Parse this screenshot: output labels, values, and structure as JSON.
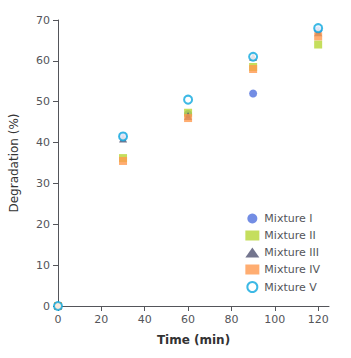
{
  "chart_data": {
    "type": "scatter",
    "xlabel": "Time (min)",
    "ylabel": "Degradation (%)",
    "xlim": [
      0,
      125
    ],
    "ylim": [
      0,
      70
    ],
    "xticks": [
      0,
      20,
      40,
      60,
      80,
      100,
      120
    ],
    "yticks": [
      0,
      10,
      20,
      30,
      40,
      50,
      60,
      70
    ],
    "x": [
      0,
      30,
      60,
      90,
      120
    ],
    "series": [
      {
        "name": "Mixture I",
        "marker": "circle",
        "values": [
          0,
          41.5,
          47.0,
          52.0,
          67.5
        ]
      },
      {
        "name": "Mixture II",
        "marker": "square",
        "values": [
          0,
          36.2,
          47.3,
          58.5,
          64.0
        ]
      },
      {
        "name": "Mixture III",
        "marker": "triangle",
        "values": [
          0,
          41.0,
          46.5,
          61.0,
          67.0
        ]
      },
      {
        "name": "Mixture IV",
        "marker": "square",
        "values": [
          0,
          35.5,
          46.0,
          58.0,
          66.0
        ]
      },
      {
        "name": "Mixture V",
        "marker": "open_circle",
        "values": [
          0,
          41.5,
          50.5,
          61.0,
          68.0
        ]
      }
    ],
    "grid": false,
    "legend": "lower right"
  }
}
